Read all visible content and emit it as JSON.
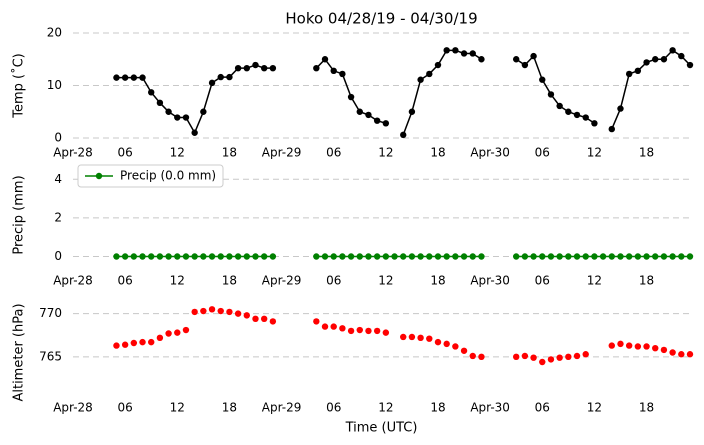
{
  "chart_data": [
    {
      "type": "line",
      "title": "Hoko 04/28/19 - 04/30/19",
      "ylabel": "Temp (˚C)",
      "x": [
        5,
        6,
        7,
        8,
        9,
        10,
        11,
        12,
        13,
        14,
        15,
        16,
        17,
        18,
        19,
        20,
        21,
        22,
        23,
        24,
        25,
        26,
        27,
        28,
        29,
        30,
        31,
        32,
        33,
        34,
        35,
        36,
        37,
        38,
        39,
        40,
        41,
        42,
        43,
        44,
        45,
        46,
        47,
        48,
        49,
        50,
        51,
        52,
        53,
        54,
        55,
        56,
        57,
        58,
        59,
        60,
        61,
        62,
        63,
        64,
        65,
        66,
        67,
        68,
        69,
        70,
        71
      ],
      "series": [
        {
          "color": "#000000",
          "linestyle": "-",
          "values": [
            11.5,
            11.5,
            11.5,
            11.5,
            8.7,
            6.7,
            5,
            3.9,
            3.9,
            1,
            5,
            10.5,
            11.6,
            11.6,
            13.3,
            13.3,
            13.9,
            13.3,
            13.3,
            null,
            null,
            null,
            null,
            13.3,
            15,
            12.8,
            12.2,
            7.8,
            5,
            4.4,
            3.3,
            2.8,
            null,
            0.6,
            5,
            11.1,
            12.2,
            13.9,
            16.7,
            16.7,
            16.1,
            16.1,
            15,
            null,
            null,
            null,
            15,
            13.9,
            15.6,
            11.1,
            8.3,
            6.1,
            5,
            4.4,
            3.9,
            2.8,
            null,
            1.7,
            5.6,
            12.2,
            12.8,
            14.4,
            15,
            15,
            16.7,
            15.6,
            13.9
          ]
        }
      ],
      "xlim": [
        0,
        71
      ],
      "ylim": [
        0,
        20
      ],
      "yticks": [
        0,
        10,
        20
      ],
      "grid": true,
      "xticks": [
        {
          "value": 0,
          "label": "Apr-28"
        },
        {
          "value": 6,
          "label": "06"
        },
        12,
        18,
        {
          "value": 24,
          "label": "Apr-29"
        },
        {
          "value": 30,
          "label": "06"
        },
        {
          "value": 36,
          "label": "12"
        },
        {
          "value": 42,
          "label": "18"
        },
        {
          "value": 48,
          "label": "Apr-30"
        },
        {
          "value": 54,
          "label": "06"
        },
        {
          "value": 60,
          "label": "12"
        },
        {
          "value": 66,
          "label": "18"
        }
      ]
    },
    {
      "type": "line",
      "ylabel": "Precip (mm)",
      "legend": "upper left",
      "x": [
        5,
        6,
        7,
        8,
        9,
        10,
        11,
        12,
        13,
        14,
        15,
        16,
        17,
        18,
        19,
        20,
        21,
        22,
        23,
        24,
        25,
        26,
        27,
        28,
        29,
        30,
        31,
        32,
        33,
        34,
        35,
        36,
        37,
        38,
        39,
        40,
        41,
        42,
        43,
        44,
        45,
        46,
        47,
        48,
        49,
        50,
        51,
        52,
        53,
        54,
        55,
        56,
        57,
        58,
        59,
        60,
        61,
        62,
        63,
        64,
        65,
        66,
        67,
        68,
        69,
        70,
        71
      ],
      "series": [
        {
          "name": "Precip (0.0 mm)",
          "color": "#008000",
          "linestyle": "-",
          "values": [
            0,
            0,
            0,
            0,
            0,
            0,
            0,
            0,
            0,
            0,
            0,
            0,
            0,
            0,
            0,
            0,
            0,
            0,
            0,
            null,
            null,
            null,
            null,
            0,
            0,
            0,
            0,
            0,
            0,
            0,
            0,
            0,
            0,
            0,
            0,
            0,
            0,
            0,
            0,
            0,
            0,
            0,
            0,
            null,
            null,
            null,
            0,
            0,
            0,
            0,
            0,
            0,
            0,
            0,
            0,
            0,
            0,
            0,
            0,
            0,
            0,
            0,
            0,
            0,
            0,
            0,
            0
          ]
        }
      ],
      "xlim": [
        0,
        71
      ],
      "ylim": [
        -0.7,
        5
      ],
      "yticks": [
        0,
        2,
        4
      ],
      "grid": true,
      "xticks": [
        {
          "value": 0,
          "label": "Apr-28"
        },
        {
          "value": 6,
          "label": "06"
        },
        12,
        18,
        {
          "value": 24,
          "label": "Apr-29"
        },
        {
          "value": 30,
          "label": "06"
        },
        {
          "value": 36,
          "label": "12"
        },
        {
          "value": 42,
          "label": "18"
        },
        {
          "value": 48,
          "label": "Apr-30"
        },
        {
          "value": 54,
          "label": "06"
        },
        {
          "value": 60,
          "label": "12"
        },
        {
          "value": 66,
          "label": "18"
        }
      ]
    },
    {
      "type": "line",
      "ylabel": "Altimeter (hPa)",
      "xlabel": "Time (UTC)",
      "x": [
        5,
        6,
        7,
        8,
        9,
        10,
        11,
        12,
        13,
        14,
        15,
        16,
        17,
        18,
        19,
        20,
        21,
        22,
        23,
        24,
        25,
        26,
        27,
        28,
        29,
        30,
        31,
        32,
        33,
        34,
        35,
        36,
        37,
        38,
        39,
        40,
        41,
        42,
        43,
        44,
        45,
        46,
        47,
        48,
        49,
        50,
        51,
        52,
        53,
        54,
        55,
        56,
        57,
        58,
        59,
        60,
        61,
        62,
        63,
        64,
        65,
        66,
        67,
        68,
        69,
        70,
        71
      ],
      "series": [
        {
          "color": "#ff0000",
          "linestyle": "none",
          "values": [
            766.3,
            766.4,
            766.6,
            766.7,
            766.7,
            767.2,
            767.7,
            767.8,
            768.1,
            770.2,
            770.3,
            770.5,
            770.3,
            770.2,
            770.0,
            769.8,
            769.4,
            769.4,
            769.1,
            null,
            null,
            null,
            null,
            769.1,
            768.5,
            768.5,
            768.3,
            768.0,
            768.1,
            768.0,
            768.0,
            767.8,
            null,
            767.3,
            767.3,
            767.2,
            767.1,
            766.7,
            766.5,
            766.2,
            765.7,
            765.1,
            765.0,
            null,
            null,
            null,
            765.0,
            765.1,
            764.9,
            764.4,
            764.7,
            764.9,
            765.0,
            765.1,
            765.3,
            null,
            null,
            766.3,
            766.5,
            766.3,
            766.2,
            766.2,
            766.0,
            765.8,
            765.5,
            765.3,
            765.3
          ]
        }
      ],
      "xlim": [
        0,
        71
      ],
      "ylim": [
        760,
        771
      ],
      "yticks": [
        765,
        770
      ],
      "grid": true,
      "xticks": [
        {
          "value": 0,
          "label": "Apr-28"
        },
        {
          "value": 6,
          "label": "06"
        },
        12,
        18,
        {
          "value": 24,
          "label": "Apr-29"
        },
        {
          "value": 30,
          "label": "06"
        },
        {
          "value": 36,
          "label": "12"
        },
        {
          "value": 42,
          "label": "18"
        },
        {
          "value": 48,
          "label": "Apr-30"
        },
        {
          "value": 54,
          "label": "06"
        },
        {
          "value": 60,
          "label": "12"
        },
        {
          "value": 66,
          "label": "18"
        }
      ]
    }
  ]
}
